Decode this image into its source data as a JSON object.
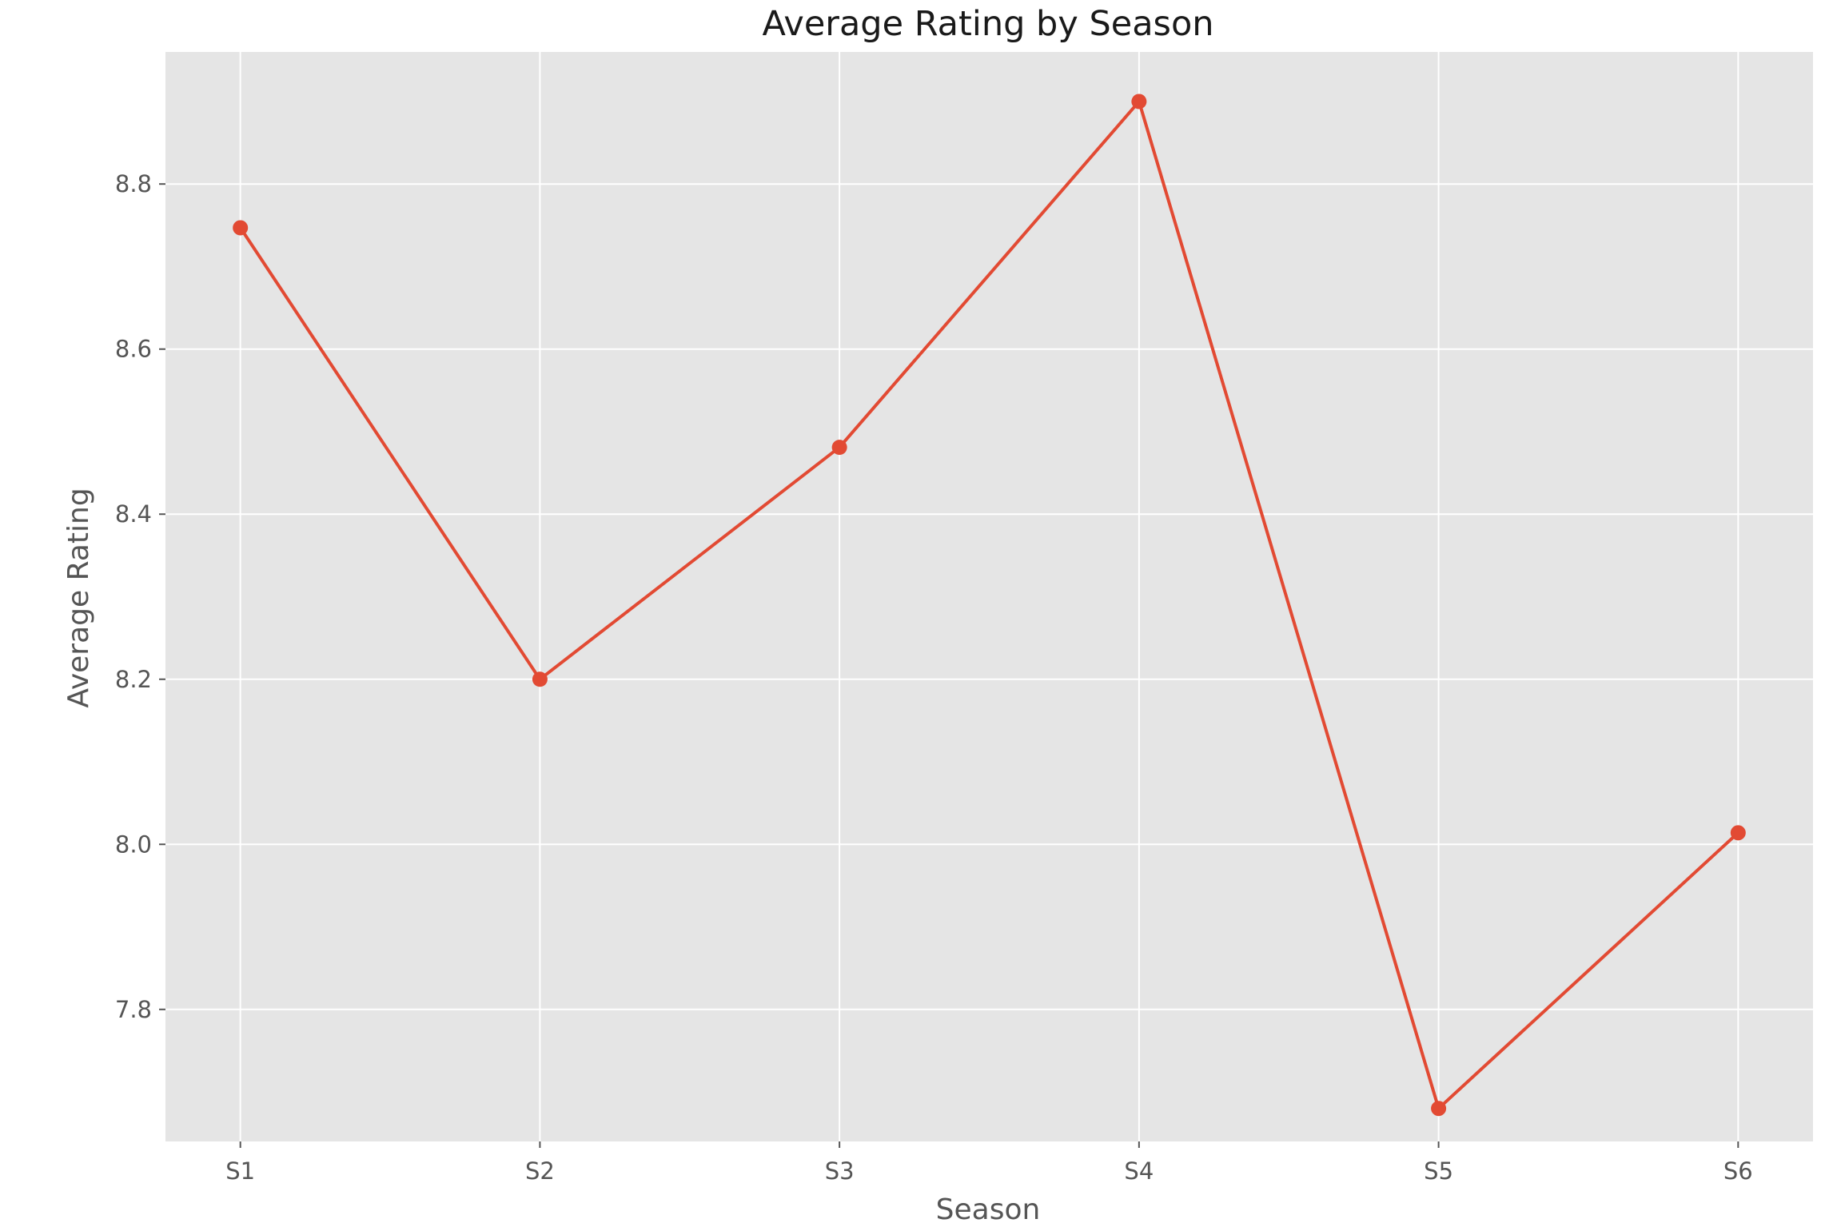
{
  "chart_data": {
    "type": "line",
    "title": "Average Rating by Season",
    "xlabel": "Season",
    "ylabel": "Average Rating",
    "categories": [
      "S1",
      "S2",
      "S3",
      "S4",
      "S5",
      "S6"
    ],
    "series": [
      {
        "values": [
          8.747,
          8.2,
          8.481,
          8.9,
          7.68,
          8.014
        ],
        "color": "#E24A33"
      }
    ],
    "ylim": [
      7.64,
      8.96
    ],
    "yticks": [
      7.8,
      8.0,
      8.2,
      8.4,
      8.6,
      8.8
    ],
    "ytick_labels": [
      "7.8",
      "8.0",
      "8.2",
      "8.4",
      "8.6",
      "8.8"
    ],
    "grid": true,
    "legend": "none",
    "background_color": "#E5E5E5",
    "grid_color": "#FFFFFF"
  }
}
